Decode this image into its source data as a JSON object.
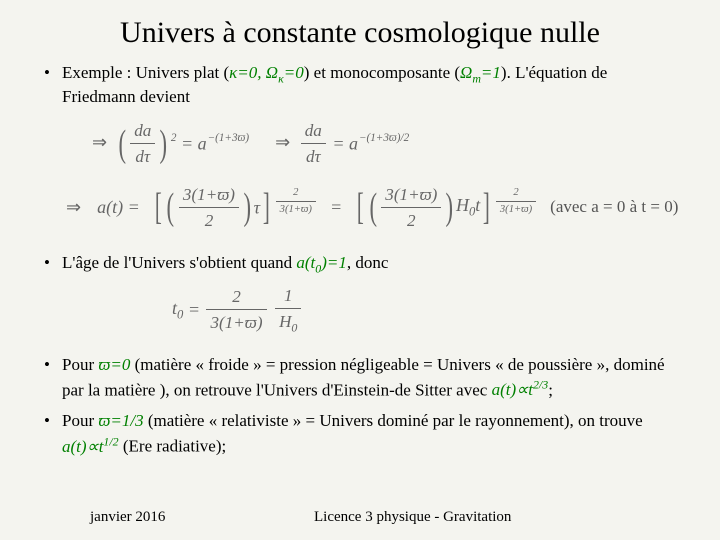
{
  "title": "Univers à constante cosmologique nulle",
  "bullets": {
    "b1_pre": "Exemple : Univers plat (",
    "b1_math1": "κ=0, Ω",
    "b1_math1_sub": "κ",
    "b1_math1_suf": "=0",
    "b1_mid": ") et monocomposante (",
    "b1_math2": "Ω",
    "b1_math2_sub": "m",
    "b1_math2_suf": "=1",
    "b1_end": "). L'équation de Friedmann devient",
    "b2_pre": "L'âge de l'Univers s'obtient quand ",
    "b2_math": "a(t",
    "b2_sub": "0",
    "b2_math_suf": ")=1",
    "b2_end": ", donc",
    "b3_pre": "Pour ",
    "b3_math": "ϖ=0",
    "b3_mid": " (matière « froide » = pression négligeable = Univers « de poussière », dominé par la matière ), on retrouve l'Univers d'Einstein-de Sitter avec ",
    "b3_math2": "a(t)∝t",
    "b3_exp": "2/3",
    "b3_end": ";",
    "b4_pre": "Pour ",
    "b4_math": "ϖ=1/3",
    "b4_mid": " (matière « relativiste » = Univers dominé par le rayonnement), on trouve ",
    "b4_math2": "a(t)∝t",
    "b4_exp": "1/2",
    "b4_end": " (Ere radiative);"
  },
  "eq1": {
    "arrow": "⇒",
    "lhs_num": "da",
    "lhs_den": "dτ",
    "lhs_pow": "2",
    "rhs_base": "= a",
    "rhs_exp": "−(1+3ϖ)",
    "sep_arrow": "⇒",
    "r2_num": "da",
    "r2_den": "dτ",
    "r2_base": "= a",
    "r2_exp": "−(1+3ϖ)/2"
  },
  "eq2": {
    "arrow": "⇒",
    "a_of_t": "a(t) =",
    "inner_num": "3(1+ϖ)",
    "inner_den": "2",
    "tau": "τ",
    "pow_num": "2",
    "pow_den": "3(1+ϖ)",
    "eq_sep": "=",
    "H0t": "H",
    "H0sub": "0",
    "t": "t",
    "note": "(avec a = 0 à t = 0)"
  },
  "eq3": {
    "t0": "t",
    "t0sub": "0",
    "eq": "=",
    "frac1_num": "2",
    "frac1_den": "3(1+ϖ)",
    "frac2_num": "1",
    "frac2_den_H": "H",
    "frac2_den_sub": "0"
  },
  "footer": {
    "date": "janvier 2016",
    "course": "Licence 3 physique - Gravitation"
  },
  "colors": {
    "background": "#f4f4ef",
    "text": "#000000",
    "math_green": "#008000",
    "equation_grey": "#666666"
  }
}
